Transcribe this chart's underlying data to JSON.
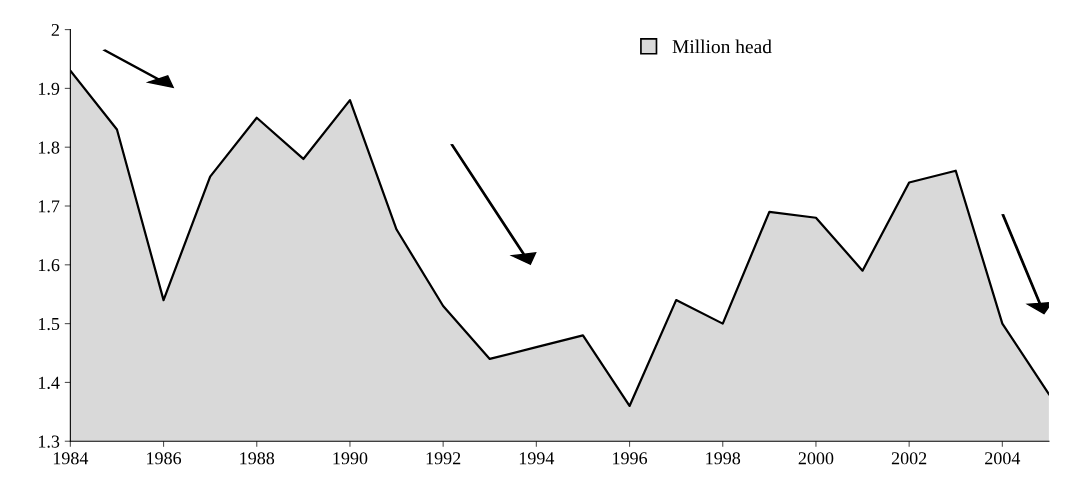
{
  "chart_data": {
    "type": "area",
    "x": [
      1984,
      1985,
      1986,
      1987,
      1988,
      1989,
      1990,
      1991,
      1992,
      1993,
      1994,
      1995,
      1996,
      1997,
      1998,
      1999,
      2000,
      2001,
      2002,
      2003,
      2004,
      2005
    ],
    "series": [
      {
        "name": "Million head",
        "color": "#d9d9d9",
        "values": [
          1.93,
          1.83,
          1.54,
          1.75,
          1.85,
          1.78,
          1.88,
          1.66,
          1.53,
          1.44,
          1.46,
          1.48,
          1.36,
          1.54,
          1.5,
          1.69,
          1.68,
          1.59,
          1.74,
          1.76,
          1.5,
          1.38
        ]
      }
    ],
    "xlim": [
      1984,
      2005
    ],
    "xticks": [
      1984,
      1986,
      1988,
      1990,
      1992,
      1994,
      1996,
      1998,
      2000,
      2002,
      2004
    ],
    "ylim": [
      1.3,
      2
    ],
    "yticks": [
      1.3,
      1.4,
      1.5,
      1.6,
      1.7,
      1.8,
      1.9,
      {
        "value": 2,
        "label": "2"
      }
    ],
    "grid": false,
    "legend": "top",
    "marker": "none",
    "line_style": "solid"
  }
}
